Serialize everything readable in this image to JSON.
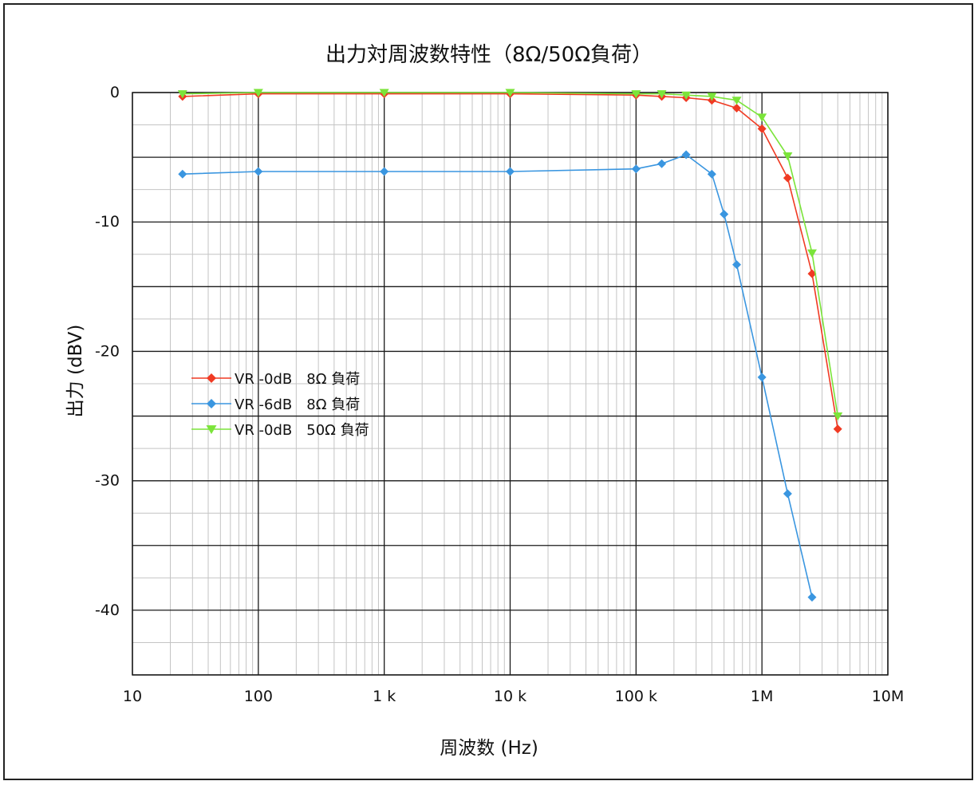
{
  "chart_data": {
    "type": "line",
    "title": "出力対周波数特性（8Ω/50Ω負荷）",
    "xlabel": "周波数 (Hz)",
    "ylabel": "出力 (dBV)",
    "x_scale": "log",
    "xlim": [
      10,
      10000000
    ],
    "ylim": [
      -45,
      0
    ],
    "grid": true,
    "legend_position": "center-left",
    "x_tick_labels": [
      {
        "value": 10,
        "label": "10"
      },
      {
        "value": 100,
        "label": "100"
      },
      {
        "value": 1000,
        "label": "1 k"
      },
      {
        "value": 10000,
        "label": "10 k"
      },
      {
        "value": 100000,
        "label": "100 k"
      },
      {
        "value": 1000000,
        "label": "1M"
      },
      {
        "value": 10000000,
        "label": "10M"
      }
    ],
    "y_tick_labels": [
      {
        "value": 0,
        "label": "0"
      },
      {
        "value": -10,
        "label": "-10"
      },
      {
        "value": -20,
        "label": "-20"
      },
      {
        "value": -30,
        "label": "-30"
      },
      {
        "value": -40,
        "label": "-40"
      }
    ],
    "series": [
      {
        "name": "VR -0dB　8Ω 負荷",
        "color": "#f03a23",
        "marker": "diamond",
        "x": [
          25,
          100,
          1000,
          10000,
          100000,
          160000,
          250000,
          400000,
          630000,
          1000000,
          1600000,
          2500000,
          4000000
        ],
        "y": [
          -0.3,
          -0.1,
          -0.1,
          -0.1,
          -0.2,
          -0.3,
          -0.4,
          -0.6,
          -1.2,
          -2.8,
          -6.6,
          -14.0,
          -26.0
        ]
      },
      {
        "name": "VR -6dB　8Ω 負荷",
        "color": "#3a96e0",
        "marker": "diamond",
        "x": [
          25,
          100,
          1000,
          10000,
          100000,
          160000,
          250000,
          400000,
          500000,
          630000,
          1000000,
          1600000,
          2500000
        ],
        "y": [
          -6.3,
          -6.1,
          -6.1,
          -6.1,
          -5.9,
          -5.5,
          -4.8,
          -6.3,
          -9.4,
          -13.3,
          -22.0,
          -31.0,
          -39.0
        ]
      },
      {
        "name": "VR -0dB　50Ω 負荷",
        "color": "#7be43a",
        "marker": "triangle-down",
        "x": [
          25,
          100,
          1000,
          10000,
          100000,
          160000,
          250000,
          400000,
          630000,
          1000000,
          1600000,
          2500000,
          4000000
        ],
        "y": [
          -0.1,
          0.0,
          0.0,
          0.0,
          -0.1,
          -0.1,
          -0.2,
          -0.3,
          -0.6,
          -1.9,
          -4.9,
          -12.4,
          -25.0
        ]
      }
    ]
  }
}
